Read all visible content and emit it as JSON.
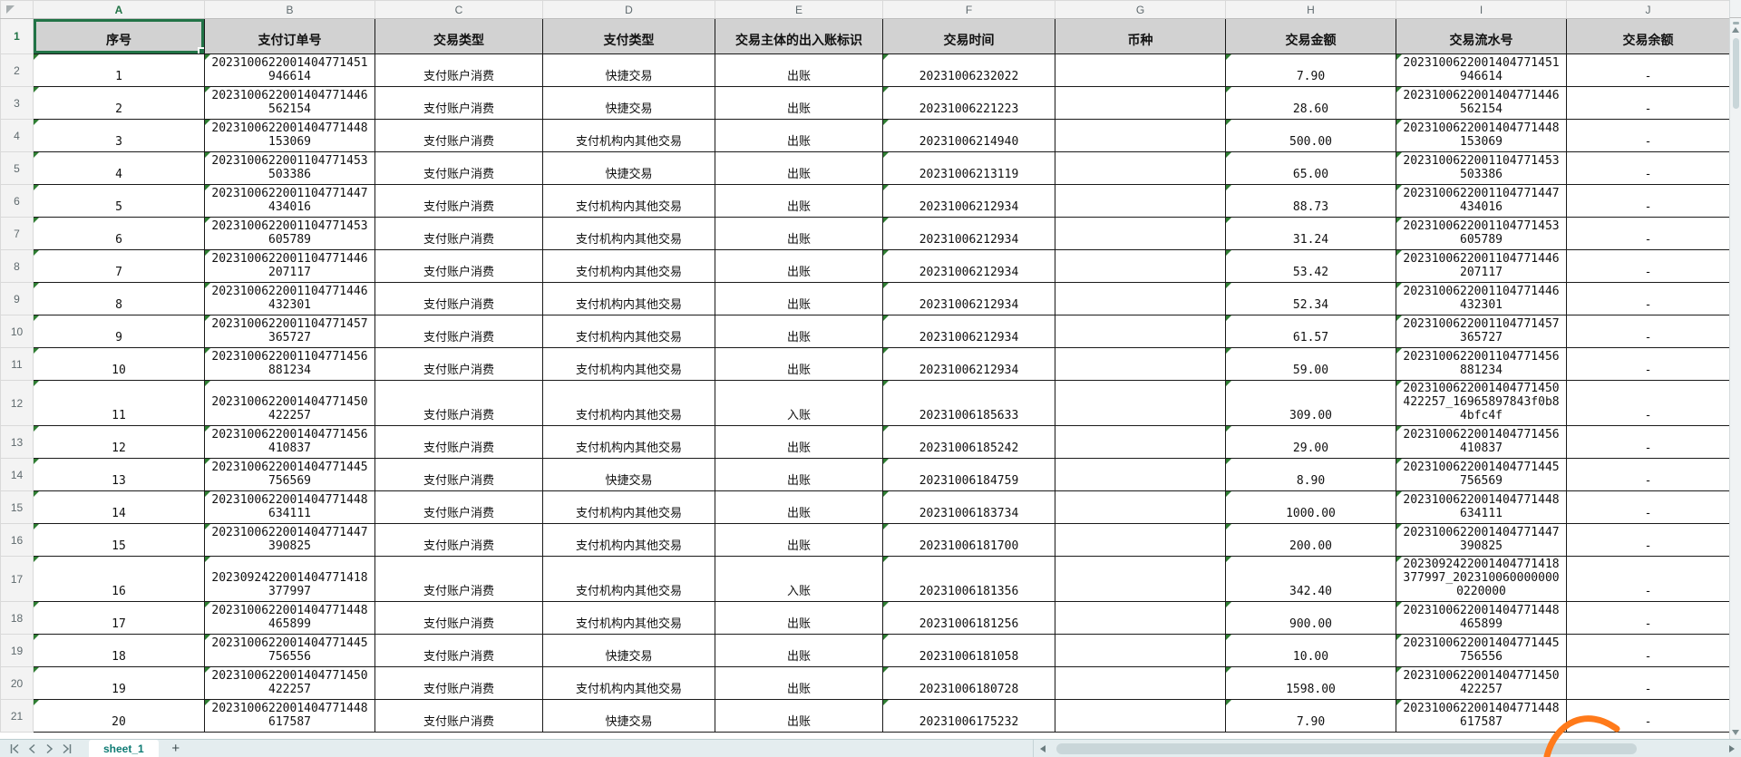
{
  "grid": {
    "column_letters": [
      "A",
      "B",
      "C",
      "D",
      "E",
      "F",
      "G",
      "H",
      "I",
      "J"
    ],
    "row_numbers": [
      "1",
      "2",
      "3",
      "4",
      "5",
      "6",
      "7",
      "8",
      "9",
      "10",
      "11",
      "12",
      "13",
      "14",
      "15",
      "16",
      "17",
      "18",
      "19",
      "20",
      "21"
    ],
    "selected_cell": "A1",
    "selected_column": "A",
    "selected_row": "1"
  },
  "table": {
    "headers": [
      "序号",
      "支付订单号",
      "交易类型",
      "支付类型",
      "交易主体的出入账标识",
      "交易时间",
      "币种",
      "交易金额",
      "交易流水号",
      "交易余额"
    ],
    "rows": [
      [
        "1",
        "2023100622001404771451946614",
        "支付账户消费",
        "快捷交易",
        "出账",
        "20231006232022",
        "",
        "7.90",
        "2023100622001404771451946614",
        "-"
      ],
      [
        "2",
        "2023100622001404771446562154",
        "支付账户消费",
        "快捷交易",
        "出账",
        "20231006221223",
        "",
        "28.60",
        "2023100622001404771446562154",
        "-"
      ],
      [
        "3",
        "2023100622001404771448153069",
        "支付账户消费",
        "支付机构内其他交易",
        "出账",
        "20231006214940",
        "",
        "500.00",
        "2023100622001404771448153069",
        "-"
      ],
      [
        "4",
        "2023100622001104771453503386",
        "支付账户消费",
        "快捷交易",
        "出账",
        "20231006213119",
        "",
        "65.00",
        "2023100622001104771453503386",
        "-"
      ],
      [
        "5",
        "2023100622001104771447434016",
        "支付账户消费",
        "支付机构内其他交易",
        "出账",
        "20231006212934",
        "",
        "88.73",
        "2023100622001104771447434016",
        "-"
      ],
      [
        "6",
        "2023100622001104771453605789",
        "支付账户消费",
        "支付机构内其他交易",
        "出账",
        "20231006212934",
        "",
        "31.24",
        "2023100622001104771453605789",
        "-"
      ],
      [
        "7",
        "2023100622001104771446207117",
        "支付账户消费",
        "支付机构内其他交易",
        "出账",
        "20231006212934",
        "",
        "53.42",
        "2023100622001104771446207117",
        "-"
      ],
      [
        "8",
        "2023100622001104771446432301",
        "支付账户消费",
        "支付机构内其他交易",
        "出账",
        "20231006212934",
        "",
        "52.34",
        "2023100622001104771446432301",
        "-"
      ],
      [
        "9",
        "2023100622001104771457365727",
        "支付账户消费",
        "支付机构内其他交易",
        "出账",
        "20231006212934",
        "",
        "61.57",
        "2023100622001104771457365727",
        "-"
      ],
      [
        "10",
        "2023100622001104771456881234",
        "支付账户消费",
        "支付机构内其他交易",
        "出账",
        "20231006212934",
        "",
        "59.00",
        "2023100622001104771456881234",
        "-"
      ],
      [
        "11",
        "2023100622001404771450422257",
        "支付账户消费",
        "支付机构内其他交易",
        "入账",
        "20231006185633",
        "",
        "309.00",
        "2023100622001404771450422257_16965897843f0b84bfc4f",
        "-"
      ],
      [
        "12",
        "2023100622001404771456410837",
        "支付账户消费",
        "支付机构内其他交易",
        "出账",
        "20231006185242",
        "",
        "29.00",
        "2023100622001404771456410837",
        "-"
      ],
      [
        "13",
        "2023100622001404771445756569",
        "支付账户消费",
        "快捷交易",
        "出账",
        "20231006184759",
        "",
        "8.90",
        "2023100622001404771445756569",
        "-"
      ],
      [
        "14",
        "2023100622001404771448634111",
        "支付账户消费",
        "支付机构内其他交易",
        "出账",
        "20231006183734",
        "",
        "1000.00",
        "2023100622001404771448634111",
        "-"
      ],
      [
        "15",
        "2023100622001404771447390825",
        "支付账户消费",
        "支付机构内其他交易",
        "出账",
        "20231006181700",
        "",
        "200.00",
        "2023100622001404771447390825",
        "-"
      ],
      [
        "16",
        "2023092422001404771418377997",
        "支付账户消费",
        "支付机构内其他交易",
        "入账",
        "20231006181356",
        "",
        "342.40",
        "2023092422001404771418377997_2023100600000000220000",
        "-"
      ],
      [
        "17",
        "2023100622001404771448465899",
        "支付账户消费",
        "支付机构内其他交易",
        "出账",
        "20231006181256",
        "",
        "900.00",
        "2023100622001404771448465899",
        "-"
      ],
      [
        "18",
        "2023100622001404771445756556",
        "支付账户消费",
        "快捷交易",
        "出账",
        "20231006181058",
        "",
        "10.00",
        "2023100622001404771445756556",
        "-"
      ],
      [
        "19",
        "2023100622001404771450422257",
        "支付账户消费",
        "支付机构内其他交易",
        "出账",
        "20231006180728",
        "",
        "1598.00",
        "2023100622001404771450422257",
        "-"
      ],
      [
        "20",
        "2023100622001404771448617587",
        "支付账户消费",
        "快捷交易",
        "出账",
        "20231006175232",
        "",
        "7.90",
        "2023100622001404771448617587",
        "-"
      ]
    ],
    "error_indicator_columns": [
      0,
      1,
      5,
      7,
      8
    ]
  },
  "sheet_tab": {
    "name": "sheet_1",
    "add_button": "+"
  },
  "colors": {
    "selection_green": "#217346",
    "tab_text_teal": "#0f7b74",
    "error_triangle_green": "#2e7d32",
    "header_fill_gray": "#d2d2d2",
    "swoosh_orange": "#ff7a1a"
  }
}
